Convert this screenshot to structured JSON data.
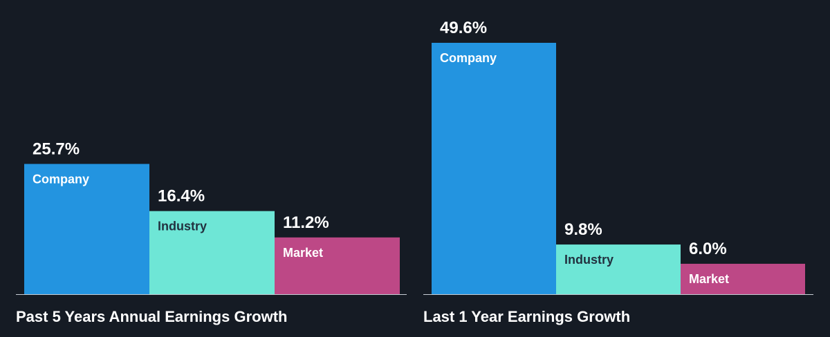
{
  "colors": {
    "background": "#151b24",
    "company": "#2394e0",
    "industry": "#6ee6d6",
    "market": "#bd4886",
    "baseline": "#c8ced6"
  },
  "chart_data": [
    {
      "type": "bar",
      "title": "Past 5 Years Annual Earnings Growth",
      "categories": [
        "Company",
        "Industry",
        "Market"
      ],
      "values": [
        25.7,
        16.4,
        11.2
      ],
      "value_labels": [
        "25.7%",
        "16.4%",
        "11.2%"
      ],
      "unit": "%",
      "ylim": [
        0,
        49.6
      ],
      "grid": false
    },
    {
      "type": "bar",
      "title": "Last 1 Year Earnings Growth",
      "categories": [
        "Company",
        "Industry",
        "Market"
      ],
      "values": [
        49.6,
        9.8,
        6.0
      ],
      "value_labels": [
        "49.6%",
        "9.8%",
        "6.0%"
      ],
      "unit": "%",
      "ylim": [
        0,
        49.6
      ],
      "grid": false
    }
  ]
}
